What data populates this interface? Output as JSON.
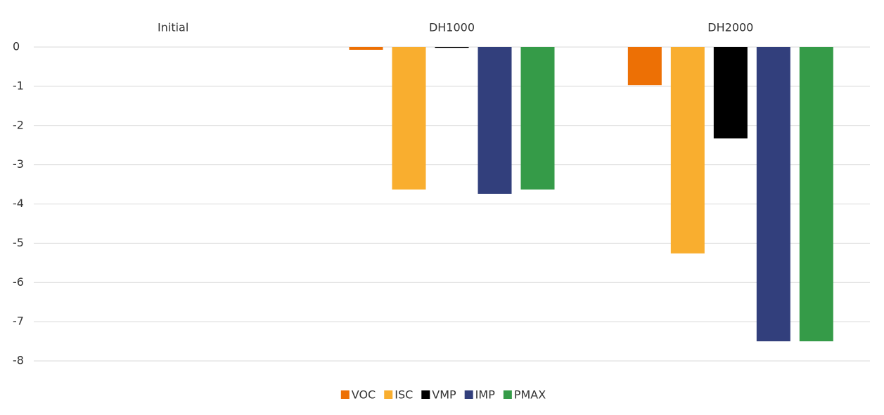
{
  "chart_data": {
    "type": "bar",
    "categories": [
      "Initial",
      "DH1000",
      "DH2000"
    ],
    "series": [
      {
        "name": "VOC",
        "color": "#ed7005",
        "values": [
          0,
          -0.07,
          -0.97
        ]
      },
      {
        "name": "ISC",
        "color": "#f9ae2f",
        "values": [
          0,
          -3.63,
          -5.26
        ]
      },
      {
        "name": "VMP",
        "color": "#000000",
        "values": [
          0,
          -0.02,
          -2.33
        ]
      },
      {
        "name": "IMP",
        "color": "#323f7c",
        "values": [
          0,
          -3.74,
          -7.5
        ]
      },
      {
        "name": "PMAX",
        "color": "#359b48",
        "values": [
          0,
          -3.63,
          -7.5
        ]
      }
    ],
    "ylim": [
      -8,
      0
    ],
    "yticks": [
      0,
      -1,
      -2,
      -3,
      -4,
      -5,
      -6,
      -7,
      -8
    ],
    "grid": true,
    "legend": "bottom"
  }
}
